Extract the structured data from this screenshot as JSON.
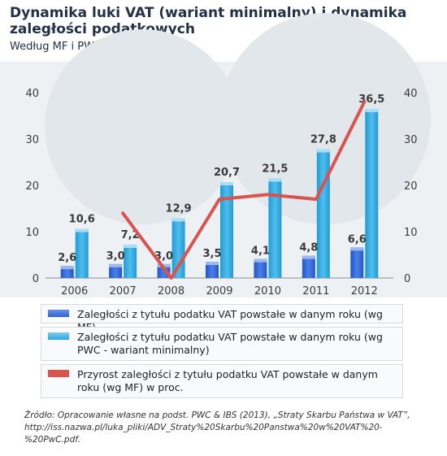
{
  "header": {
    "title": "Dynamika luki VAT (wariant minimalny) i dynamika zaległości podatkowych",
    "subtitle": "Według MF i PWC (w mld zł)"
  },
  "colors": {
    "bar_mf": "#2f64d8",
    "bar_pwc": "#2aa8e0",
    "line": "#d9534f",
    "axis_text": "#3a3a3a"
  },
  "chart_data": {
    "type": "bar",
    "categories": [
      "2006",
      "2007",
      "2008",
      "2009",
      "2010",
      "2011",
      "2012"
    ],
    "series": [
      {
        "name": "Zaległości z tytułu podatku VAT powstałe w danym roku (wg MF)",
        "type": "bar",
        "values": [
          2.6,
          3.0,
          3.0,
          3.5,
          4.1,
          4.8,
          6.6
        ]
      },
      {
        "name": "Zaległości z tytułu podatku VAT powstałe w danym roku (wg PWC - wariant minimalny)",
        "type": "bar",
        "values": [
          10.6,
          7.2,
          12.9,
          20.7,
          21.5,
          27.8,
          36.5
        ]
      },
      {
        "name": "Przyrost zaległości z tytułu podatku VAT powstałe w danym roku (wg MF) w proc.",
        "type": "line",
        "axis": "right",
        "values": [
          null,
          14,
          0,
          17,
          18,
          17,
          38
        ]
      }
    ],
    "ylim": [
      0,
      40
    ],
    "y2lim": [
      0,
      40
    ],
    "yticks": [
      0,
      10,
      20,
      30,
      40
    ],
    "y2ticks": [
      0,
      10,
      20,
      30,
      40
    ],
    "data_labels_mf": [
      "2,6",
      "3,0",
      "3,0",
      "3,5",
      "4,1",
      "4,8",
      "6,6"
    ],
    "data_labels_pwc": [
      "10,6",
      "7,2",
      "12,9",
      "20,7",
      "21,5",
      "27,8",
      "36,5"
    ],
    "grid": false
  },
  "legend": {
    "items": [
      {
        "label": "Zaległości z tytułu podatku VAT powstałe w danym roku (wg MF)"
      },
      {
        "label": "Zaległości z tytułu podatku VAT powstałe w danym roku (wg PWC - wariant minimalny)"
      },
      {
        "label": "Przyrost zaległości z tytułu podatku VAT powstałe w danym roku (wg MF) w proc."
      }
    ]
  },
  "source": {
    "text": "Źródło: Opracowanie własne na podst. PWC & IBS (2013), „Straty Skarbu Państwa w VAT”, http://iss.nazwa.pl/luka_pliki/ADV_Straty%20Skarbu%20Panstwa%20w%20VAT%20-%20PwC.pdf."
  }
}
